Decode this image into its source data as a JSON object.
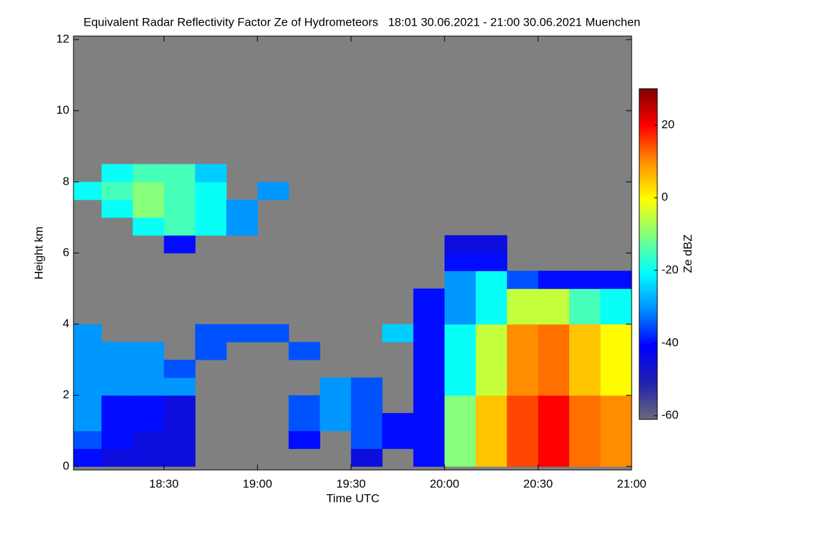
{
  "chart_data": {
    "type": "heatmap",
    "title": "Equivalent Radar Reflectivity Factor Ze of Hydrometeors   18:01 30.06.2021 - 21:00 30.06.2021 Muenchen",
    "x_label": "Time UTC",
    "y_label": "Height km",
    "colorbar_label": "Ze dBZ",
    "x": [
      "18:01",
      "18:10",
      "18:20",
      "18:30",
      "18:40",
      "18:50",
      "19:00",
      "19:10",
      "19:20",
      "19:30",
      "19:40",
      "19:50",
      "20:00",
      "20:10",
      "20:20",
      "20:30",
      "20:40",
      "20:50",
      "21:00"
    ],
    "y": [
      0,
      0.5,
      1,
      1.5,
      2,
      2.5,
      3,
      3.5,
      4,
      4.5,
      5,
      5.5,
      6,
      6.5,
      7,
      7.5,
      8,
      8.5
    ],
    "z": [
      [
        -40,
        -45,
        -45,
        -45,
        null,
        null,
        null,
        null,
        null,
        -45,
        null,
        -40,
        -10,
        5,
        15,
        20,
        12,
        10
      ],
      [
        -35,
        -40,
        -45,
        -45,
        null,
        null,
        null,
        -40,
        null,
        -35,
        -40,
        -40,
        -10,
        5,
        15,
        20,
        12,
        10
      ],
      [
        -30,
        -40,
        -40,
        -45,
        null,
        null,
        null,
        -35,
        -30,
        -35,
        -40,
        -40,
        -10,
        5,
        15,
        20,
        12,
        10
      ],
      [
        -30,
        -40,
        -40,
        -45,
        null,
        null,
        null,
        -35,
        -30,
        -35,
        null,
        -40,
        -10,
        5,
        15,
        20,
        12,
        10
      ],
      [
        -30,
        -30,
        -30,
        -30,
        null,
        null,
        null,
        null,
        -30,
        -35,
        null,
        -40,
        -20,
        -5,
        10,
        12,
        5,
        0
      ],
      [
        -30,
        -30,
        -30,
        -35,
        null,
        null,
        null,
        null,
        null,
        null,
        null,
        -40,
        -20,
        -5,
        10,
        12,
        5,
        0
      ],
      [
        -30,
        -30,
        -30,
        null,
        -35,
        null,
        null,
        -35,
        null,
        null,
        null,
        -40,
        -20,
        -5,
        10,
        12,
        5,
        0
      ],
      [
        -30,
        null,
        null,
        null,
        -35,
        -35,
        -35,
        null,
        null,
        null,
        -25,
        -40,
        -20,
        -5,
        10,
        12,
        5,
        0
      ],
      [
        null,
        null,
        null,
        null,
        null,
        null,
        null,
        null,
        null,
        null,
        null,
        -40,
        -30,
        -20,
        -5,
        -5,
        -15,
        -20
      ],
      [
        null,
        null,
        null,
        null,
        null,
        null,
        null,
        null,
        null,
        null,
        null,
        -40,
        -30,
        -20,
        -5,
        -5,
        -15,
        -20
      ],
      [
        null,
        null,
        null,
        null,
        null,
        null,
        null,
        null,
        null,
        null,
        null,
        null,
        -30,
        -20,
        -35,
        -40,
        -40,
        -40
      ],
      [
        null,
        null,
        null,
        null,
        null,
        null,
        null,
        null,
        null,
        null,
        null,
        null,
        -40,
        -40,
        null,
        null,
        null,
        null
      ],
      [
        null,
        null,
        null,
        -40,
        null,
        null,
        null,
        null,
        null,
        null,
        null,
        null,
        -45,
        -45,
        null,
        null,
        null,
        null
      ],
      [
        null,
        null,
        -20,
        -15,
        -20,
        -30,
        null,
        null,
        null,
        null,
        null,
        null,
        null,
        null,
        null,
        null,
        null,
        null
      ],
      [
        null,
        -20,
        -10,
        -15,
        -20,
        -30,
        null,
        null,
        null,
        null,
        null,
        null,
        null,
        null,
        null,
        null,
        null,
        null
      ],
      [
        -20,
        -15,
        -10,
        -15,
        -20,
        null,
        -30,
        null,
        null,
        null,
        null,
        null,
        null,
        null,
        null,
        null,
        null,
        null
      ],
      [
        null,
        -20,
        -15,
        -15,
        -25,
        null,
        null,
        null,
        null,
        null,
        null,
        null,
        null,
        null,
        null,
        null,
        null,
        null
      ]
    ],
    "xlim": [
      "18:01",
      "21:00"
    ],
    "xticks": [
      "18:30",
      "19:00",
      "19:30",
      "20:00",
      "20:30",
      "21:00"
    ],
    "ylim": [
      -0.1,
      12.1
    ],
    "yticks": [
      0,
      2,
      4,
      6,
      8,
      10,
      12
    ],
    "clim": [
      -61,
      30
    ],
    "cticks": [
      -60,
      -40,
      -20,
      0,
      20
    ],
    "background": "#808080",
    "colormap": [
      "#6a6a7a",
      "#2020b0",
      "#0000ff",
      "#0090ff",
      "#00ffff",
      "#80ff80",
      "#ffff00",
      "#ff9000",
      "#ff0000",
      "#800000"
    ]
  }
}
